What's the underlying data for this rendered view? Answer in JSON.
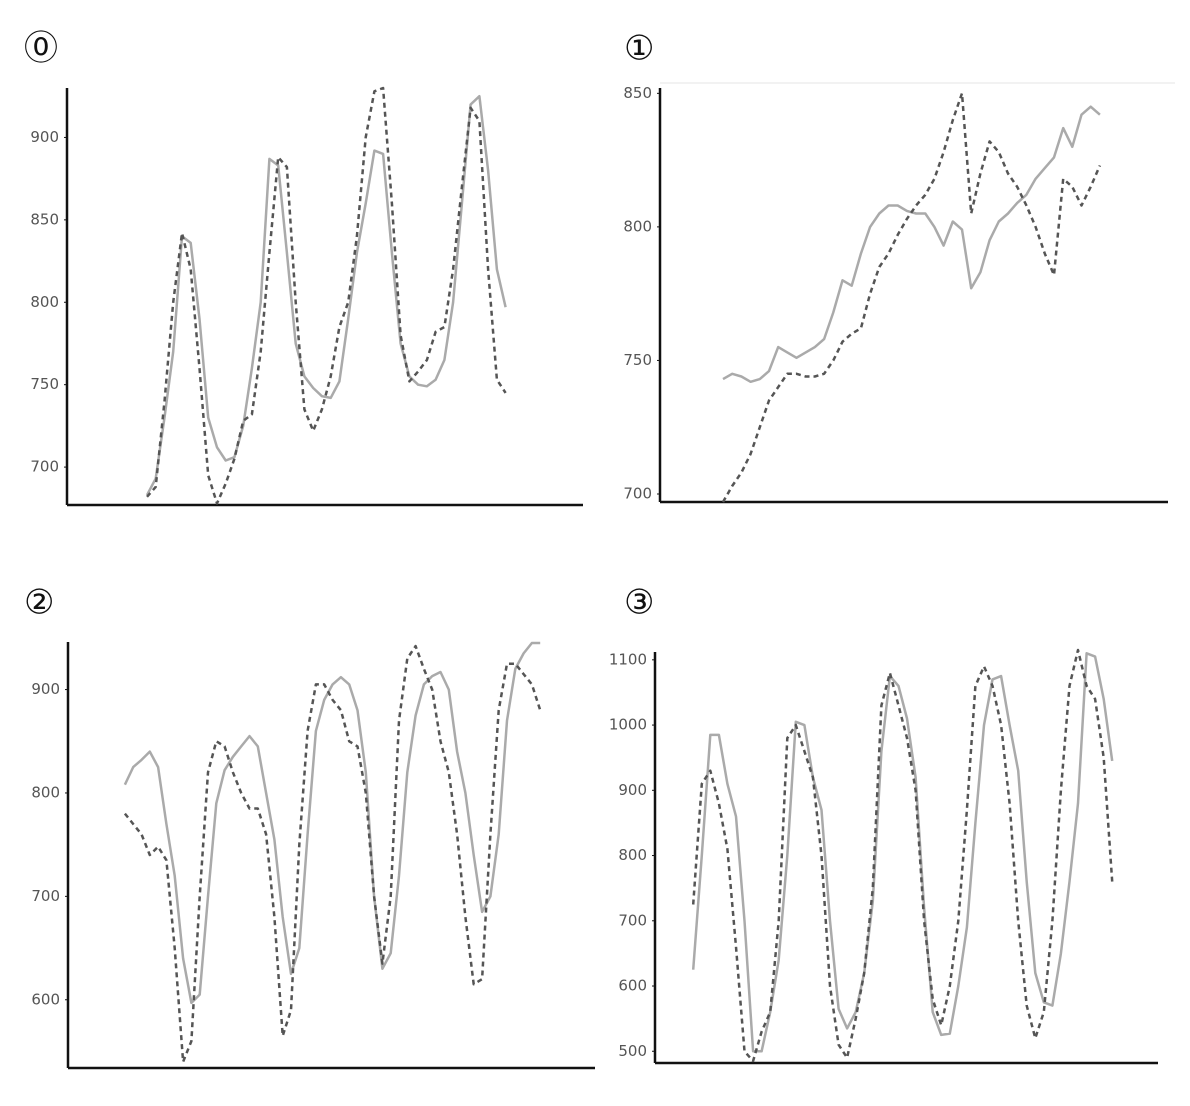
{
  "chart_data": [
    {
      "type": "line",
      "title": "⓪",
      "ylim": [
        677,
        930
      ],
      "yticks": [
        700,
        750,
        800,
        850,
        900
      ],
      "series": [
        {
          "color": "#aaaaaa",
          "linestyle": "solid",
          "values": [
            683,
            693,
            730,
            770,
            840,
            836,
            790,
            730,
            712,
            704,
            706,
            725,
            760,
            800,
            887,
            883,
            830,
            775,
            755,
            748,
            743,
            742,
            752,
            790,
            830,
            860,
            892,
            890,
            830,
            775,
            755,
            750,
            749,
            753,
            765,
            800,
            860,
            920,
            925,
            880,
            820,
            797
          ]
        },
        {
          "color": "#555555",
          "linestyle": "dashed",
          "values": [
            682,
            688,
            740,
            800,
            842,
            820,
            760,
            695,
            678,
            690,
            705,
            728,
            732,
            770,
            830,
            888,
            882,
            800,
            735,
            722,
            735,
            755,
            785,
            800,
            840,
            900,
            928,
            930,
            860,
            780,
            752,
            758,
            765,
            782,
            785,
            820,
            870,
            918,
            910,
            820,
            753,
            745
          ]
        }
      ]
    },
    {
      "type": "line",
      "title": "①",
      "ylim": [
        697,
        852
      ],
      "yticks": [
        700,
        750,
        800,
        850
      ],
      "series": [
        {
          "color": "#aaaaaa",
          "linestyle": "solid",
          "values": [
            743,
            745,
            744,
            742,
            743,
            746,
            755,
            753,
            751,
            753,
            755,
            758,
            768,
            780,
            778,
            790,
            800,
            805,
            808,
            808,
            806,
            805,
            805,
            800,
            793,
            802,
            799,
            777,
            783,
            795,
            802,
            805,
            809,
            812,
            818,
            822,
            826,
            837,
            830,
            842,
            845,
            842
          ]
        },
        {
          "color": "#555555",
          "linestyle": "dashed",
          "values": [
            697,
            703,
            708,
            715,
            725,
            735,
            740,
            745,
            745,
            744,
            744,
            745,
            750,
            757,
            760,
            762,
            775,
            785,
            790,
            797,
            803,
            808,
            812,
            818,
            828,
            840,
            850,
            805,
            820,
            832,
            828,
            820,
            815,
            808,
            800,
            790,
            782,
            818,
            815,
            808,
            815,
            823
          ]
        }
      ]
    },
    {
      "type": "line",
      "title": "②",
      "ylim": [
        534,
        946
      ],
      "yticks": [
        600,
        700,
        800,
        900
      ],
      "series": [
        {
          "color": "#aaaaaa",
          "linestyle": "solid",
          "values": [
            808,
            825,
            832,
            840,
            825,
            770,
            720,
            640,
            597,
            605,
            700,
            790,
            822,
            835,
            845,
            855,
            845,
            800,
            755,
            680,
            625,
            650,
            760,
            860,
            890,
            905,
            912,
            905,
            880,
            820,
            700,
            630,
            645,
            720,
            820,
            875,
            905,
            913,
            917,
            900,
            840,
            800,
            740,
            685,
            700,
            760,
            870,
            920,
            935,
            945,
            945
          ]
        },
        {
          "color": "#555555",
          "linestyle": "dashed",
          "values": [
            780,
            770,
            760,
            740,
            748,
            735,
            650,
            540,
            560,
            700,
            820,
            850,
            845,
            820,
            800,
            785,
            785,
            760,
            680,
            565,
            590,
            750,
            860,
            905,
            905,
            890,
            880,
            850,
            845,
            800,
            700,
            635,
            700,
            870,
            930,
            942,
            920,
            900,
            850,
            820,
            760,
            680,
            615,
            620,
            760,
            880,
            925,
            925,
            915,
            905,
            880
          ]
        }
      ]
    },
    {
      "type": "line",
      "title": "③",
      "ylim": [
        482,
        1112
      ],
      "yticks": [
        500,
        600,
        700,
        800,
        900,
        1000,
        1100
      ],
      "series": [
        {
          "color": "#aaaaaa",
          "linestyle": "solid",
          "values": [
            625,
            800,
            985,
            985,
            910,
            860,
            700,
            500,
            500,
            560,
            640,
            800,
            1005,
            1000,
            920,
            870,
            700,
            565,
            535,
            560,
            620,
            730,
            960,
            1075,
            1060,
            1010,
            920,
            720,
            560,
            525,
            527,
            600,
            690,
            850,
            1000,
            1070,
            1075,
            1000,
            930,
            760,
            620,
            575,
            570,
            650,
            760,
            880,
            1110,
            1105,
            1040,
            945
          ]
        },
        {
          "color": "#555555",
          "linestyle": "dashed",
          "values": [
            725,
            910,
            930,
            880,
            810,
            660,
            500,
            485,
            530,
            560,
            700,
            980,
            1000,
            960,
            920,
            800,
            600,
            510,
            490,
            550,
            620,
            750,
            1030,
            1080,
            1030,
            980,
            900,
            700,
            580,
            540,
            600,
            700,
            870,
            1060,
            1090,
            1060,
            1000,
            880,
            700,
            570,
            520,
            560,
            700,
            900,
            1060,
            1115,
            1060,
            1040,
            950,
            760
          ]
        }
      ]
    }
  ]
}
